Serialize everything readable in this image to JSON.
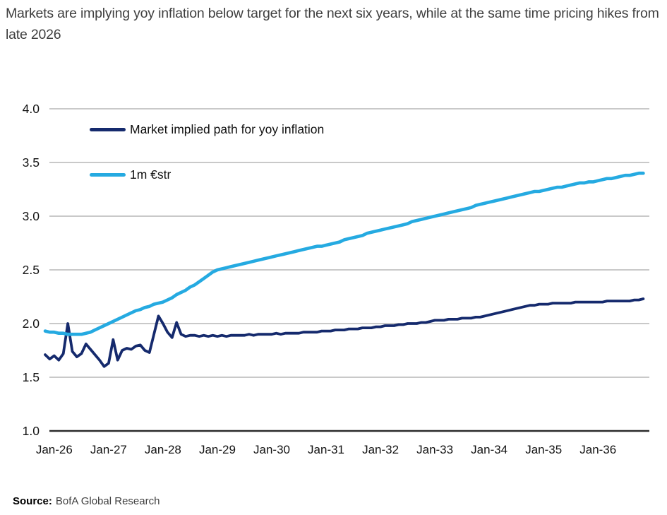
{
  "footer": {
    "source_label": "Source:",
    "source_text": "BofA Global Research"
  },
  "colors": {
    "grid": "#c9c9c9",
    "axis": "#2b2b2b",
    "title_text": "#3f3f3f",
    "tick_text": "#141414",
    "navy_series": "#152a6d",
    "blue_series": "#25aae1"
  },
  "chart_data": {
    "type": "line",
    "title": "Markets are implying yoy inflation below target for the next six years, while at the same time pricing hikes from late 2026",
    "grid": "horizontal",
    "legend_position": "inside-top-left",
    "x_axis": {
      "tick_labels": [
        "Jan-26",
        "Jan-27",
        "Jan-28",
        "Jan-29",
        "Jan-30",
        "Jan-31",
        "Jan-32",
        "Jan-33",
        "Jan-34",
        "Jan-35",
        "Jan-36"
      ],
      "tick_interval_months": 12,
      "start_offset_months": 2,
      "frequency": "monthly",
      "total_points": 133
    },
    "y_axis": {
      "range": [
        1.0,
        4.0
      ],
      "ticks": [
        {
          "label": "4.0",
          "value": 4.0
        },
        {
          "label": "3.5",
          "value": 3.5
        },
        {
          "label": "3.0",
          "value": 3.0
        },
        {
          "label": "2.5",
          "value": 2.5
        },
        {
          "label": "2.0",
          "value": 2.0
        },
        {
          "label": "1.5",
          "value": 1.5
        },
        {
          "label": "1.0",
          "value": 1.0
        }
      ]
    },
    "series": [
      {
        "name": "Market implied path for yoy inflation",
        "color": "#152a6d",
        "values": [
          1.71,
          1.67,
          1.7,
          1.66,
          1.72,
          2.0,
          1.74,
          1.69,
          1.72,
          1.81,
          1.76,
          1.71,
          1.66,
          1.6,
          1.63,
          1.85,
          1.66,
          1.75,
          1.77,
          1.76,
          1.79,
          1.8,
          1.75,
          1.73,
          1.9,
          2.07,
          2.0,
          1.92,
          1.87,
          2.01,
          1.9,
          1.88,
          1.89,
          1.89,
          1.88,
          1.89,
          1.88,
          1.89,
          1.88,
          1.89,
          1.88,
          1.89,
          1.89,
          1.89,
          1.89,
          1.9,
          1.89,
          1.9,
          1.9,
          1.9,
          1.9,
          1.91,
          1.9,
          1.91,
          1.91,
          1.91,
          1.91,
          1.92,
          1.92,
          1.92,
          1.92,
          1.93,
          1.93,
          1.93,
          1.94,
          1.94,
          1.94,
          1.95,
          1.95,
          1.95,
          1.96,
          1.96,
          1.96,
          1.97,
          1.97,
          1.98,
          1.98,
          1.98,
          1.99,
          1.99,
          2.0,
          2.0,
          2.0,
          2.01,
          2.01,
          2.02,
          2.03,
          2.03,
          2.03,
          2.04,
          2.04,
          2.04,
          2.05,
          2.05,
          2.05,
          2.06,
          2.06,
          2.07,
          2.08,
          2.09,
          2.1,
          2.11,
          2.12,
          2.13,
          2.14,
          2.15,
          2.16,
          2.17,
          2.17,
          2.18,
          2.18,
          2.18,
          2.19,
          2.19,
          2.19,
          2.19,
          2.19,
          2.2,
          2.2,
          2.2,
          2.2,
          2.2,
          2.2,
          2.2,
          2.21,
          2.21,
          2.21,
          2.21,
          2.21,
          2.21,
          2.22,
          2.22,
          2.23
        ]
      },
      {
        "name": "1m €str",
        "color": "#25aae1",
        "values": [
          1.93,
          1.92,
          1.92,
          1.91,
          1.91,
          1.9,
          1.9,
          1.9,
          1.9,
          1.91,
          1.92,
          1.94,
          1.96,
          1.98,
          2.0,
          2.02,
          2.04,
          2.06,
          2.08,
          2.1,
          2.12,
          2.13,
          2.15,
          2.16,
          2.18,
          2.19,
          2.2,
          2.22,
          2.24,
          2.27,
          2.29,
          2.31,
          2.34,
          2.36,
          2.39,
          2.42,
          2.45,
          2.48,
          2.5,
          2.51,
          2.52,
          2.53,
          2.54,
          2.55,
          2.56,
          2.57,
          2.58,
          2.59,
          2.6,
          2.61,
          2.62,
          2.63,
          2.64,
          2.65,
          2.66,
          2.67,
          2.68,
          2.69,
          2.7,
          2.71,
          2.72,
          2.72,
          2.73,
          2.74,
          2.75,
          2.76,
          2.78,
          2.79,
          2.8,
          2.81,
          2.82,
          2.84,
          2.85,
          2.86,
          2.87,
          2.88,
          2.89,
          2.9,
          2.91,
          2.92,
          2.93,
          2.95,
          2.96,
          2.97,
          2.98,
          2.99,
          3.0,
          3.01,
          3.02,
          3.03,
          3.04,
          3.05,
          3.06,
          3.07,
          3.08,
          3.1,
          3.11,
          3.12,
          3.13,
          3.14,
          3.15,
          3.16,
          3.17,
          3.18,
          3.19,
          3.2,
          3.21,
          3.22,
          3.23,
          3.23,
          3.24,
          3.25,
          3.26,
          3.27,
          3.27,
          3.28,
          3.29,
          3.3,
          3.31,
          3.31,
          3.32,
          3.32,
          3.33,
          3.34,
          3.35,
          3.35,
          3.36,
          3.37,
          3.38,
          3.38,
          3.39,
          3.4,
          3.4
        ]
      }
    ]
  }
}
